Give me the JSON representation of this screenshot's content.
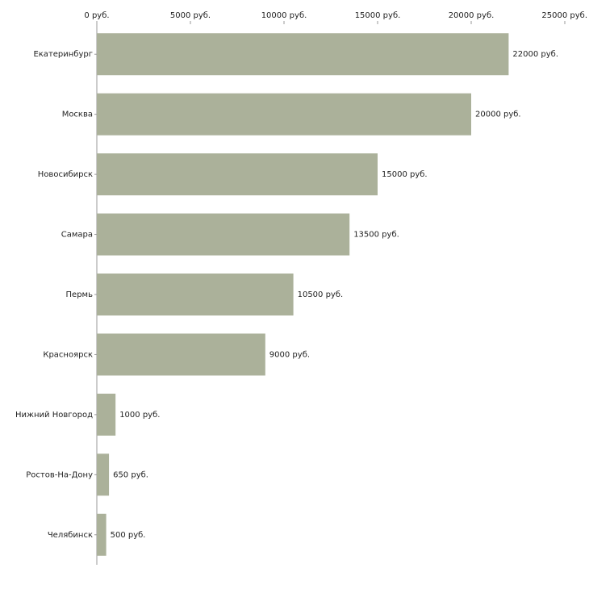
{
  "chart_data": {
    "type": "bar",
    "orientation": "horizontal",
    "categories": [
      "Екатеринбург",
      "Москва",
      "Новосибирск",
      "Самара",
      "Пермь",
      "Красноярск",
      "Нижний Новгород",
      "Ростов-На-Дону",
      "Челябинск"
    ],
    "values": [
      22000,
      20000,
      15000,
      13500,
      10500,
      9000,
      1000,
      650,
      500
    ],
    "value_labels": [
      "22000 руб.",
      "20000 руб.",
      "15000 руб.",
      "13500 руб.",
      "10500 руб.",
      "9000 руб.",
      "1000 руб.",
      "650 руб.",
      "500 руб."
    ],
    "color": "#abb19a",
    "xlim": [
      0,
      25000
    ],
    "xticks": [
      {
        "value": 0,
        "label": "0 руб."
      },
      {
        "value": 5000,
        "label": "5000 руб."
      },
      {
        "value": 10000,
        "label": "10000 руб."
      },
      {
        "value": 15000,
        "label": "15000 руб."
      },
      {
        "value": 20000,
        "label": "20000 руб."
      },
      {
        "value": 25000,
        "label": "25000 руб."
      }
    ]
  }
}
